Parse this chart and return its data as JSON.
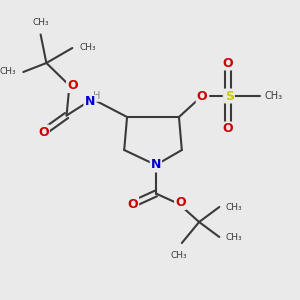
{
  "bg_color": "#eaeaea",
  "bond_color": "#3a3a3a",
  "N_color": "#0000cc",
  "O_color": "#cc0000",
  "S_color": "#cccc00",
  "H_color": "#808090",
  "figsize": [
    3.0,
    3.0
  ],
  "dpi": 100,
  "xlim": [
    0,
    10
  ],
  "ylim": [
    0,
    10
  ]
}
